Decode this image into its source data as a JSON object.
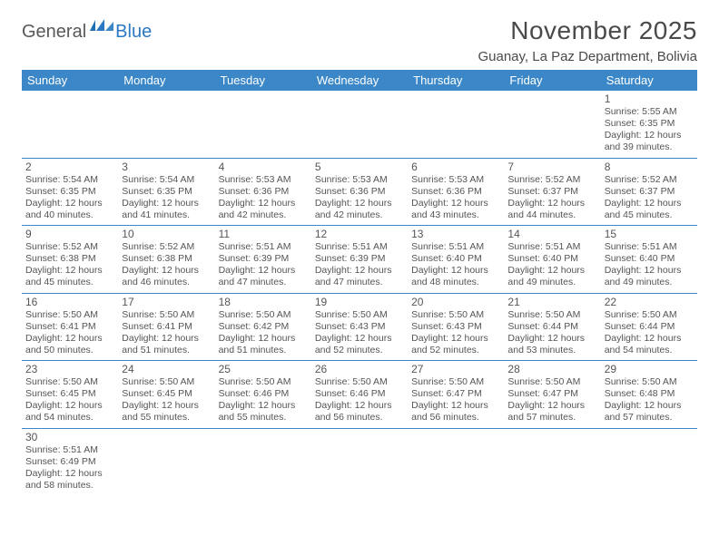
{
  "logo": {
    "text1": "General",
    "text2": "Blue"
  },
  "title": "November 2025",
  "location": "Guanay, La Paz Department, Bolivia",
  "colors": {
    "headerBg": "#3b87c8",
    "headerText": "#ffffff",
    "bodyText": "#555555",
    "titleText": "#4a4a4a",
    "logoGray": "#585858",
    "logoBlue": "#2b78c4",
    "rowBorder": "#3b87c8"
  },
  "weekdays": [
    "Sunday",
    "Monday",
    "Tuesday",
    "Wednesday",
    "Thursday",
    "Friday",
    "Saturday"
  ],
  "weeks": [
    [
      null,
      null,
      null,
      null,
      null,
      null,
      {
        "n": "1",
        "sr": "Sunrise: 5:55 AM",
        "ss": "Sunset: 6:35 PM",
        "d1": "Daylight: 12 hours",
        "d2": "and 39 minutes."
      }
    ],
    [
      {
        "n": "2",
        "sr": "Sunrise: 5:54 AM",
        "ss": "Sunset: 6:35 PM",
        "d1": "Daylight: 12 hours",
        "d2": "and 40 minutes."
      },
      {
        "n": "3",
        "sr": "Sunrise: 5:54 AM",
        "ss": "Sunset: 6:35 PM",
        "d1": "Daylight: 12 hours",
        "d2": "and 41 minutes."
      },
      {
        "n": "4",
        "sr": "Sunrise: 5:53 AM",
        "ss": "Sunset: 6:36 PM",
        "d1": "Daylight: 12 hours",
        "d2": "and 42 minutes."
      },
      {
        "n": "5",
        "sr": "Sunrise: 5:53 AM",
        "ss": "Sunset: 6:36 PM",
        "d1": "Daylight: 12 hours",
        "d2": "and 42 minutes."
      },
      {
        "n": "6",
        "sr": "Sunrise: 5:53 AM",
        "ss": "Sunset: 6:36 PM",
        "d1": "Daylight: 12 hours",
        "d2": "and 43 minutes."
      },
      {
        "n": "7",
        "sr": "Sunrise: 5:52 AM",
        "ss": "Sunset: 6:37 PM",
        "d1": "Daylight: 12 hours",
        "d2": "and 44 minutes."
      },
      {
        "n": "8",
        "sr": "Sunrise: 5:52 AM",
        "ss": "Sunset: 6:37 PM",
        "d1": "Daylight: 12 hours",
        "d2": "and 45 minutes."
      }
    ],
    [
      {
        "n": "9",
        "sr": "Sunrise: 5:52 AM",
        "ss": "Sunset: 6:38 PM",
        "d1": "Daylight: 12 hours",
        "d2": "and 45 minutes."
      },
      {
        "n": "10",
        "sr": "Sunrise: 5:52 AM",
        "ss": "Sunset: 6:38 PM",
        "d1": "Daylight: 12 hours",
        "d2": "and 46 minutes."
      },
      {
        "n": "11",
        "sr": "Sunrise: 5:51 AM",
        "ss": "Sunset: 6:39 PM",
        "d1": "Daylight: 12 hours",
        "d2": "and 47 minutes."
      },
      {
        "n": "12",
        "sr": "Sunrise: 5:51 AM",
        "ss": "Sunset: 6:39 PM",
        "d1": "Daylight: 12 hours",
        "d2": "and 47 minutes."
      },
      {
        "n": "13",
        "sr": "Sunrise: 5:51 AM",
        "ss": "Sunset: 6:40 PM",
        "d1": "Daylight: 12 hours",
        "d2": "and 48 minutes."
      },
      {
        "n": "14",
        "sr": "Sunrise: 5:51 AM",
        "ss": "Sunset: 6:40 PM",
        "d1": "Daylight: 12 hours",
        "d2": "and 49 minutes."
      },
      {
        "n": "15",
        "sr": "Sunrise: 5:51 AM",
        "ss": "Sunset: 6:40 PM",
        "d1": "Daylight: 12 hours",
        "d2": "and 49 minutes."
      }
    ],
    [
      {
        "n": "16",
        "sr": "Sunrise: 5:50 AM",
        "ss": "Sunset: 6:41 PM",
        "d1": "Daylight: 12 hours",
        "d2": "and 50 minutes."
      },
      {
        "n": "17",
        "sr": "Sunrise: 5:50 AM",
        "ss": "Sunset: 6:41 PM",
        "d1": "Daylight: 12 hours",
        "d2": "and 51 minutes."
      },
      {
        "n": "18",
        "sr": "Sunrise: 5:50 AM",
        "ss": "Sunset: 6:42 PM",
        "d1": "Daylight: 12 hours",
        "d2": "and 51 minutes."
      },
      {
        "n": "19",
        "sr": "Sunrise: 5:50 AM",
        "ss": "Sunset: 6:43 PM",
        "d1": "Daylight: 12 hours",
        "d2": "and 52 minutes."
      },
      {
        "n": "20",
        "sr": "Sunrise: 5:50 AM",
        "ss": "Sunset: 6:43 PM",
        "d1": "Daylight: 12 hours",
        "d2": "and 52 minutes."
      },
      {
        "n": "21",
        "sr": "Sunrise: 5:50 AM",
        "ss": "Sunset: 6:44 PM",
        "d1": "Daylight: 12 hours",
        "d2": "and 53 minutes."
      },
      {
        "n": "22",
        "sr": "Sunrise: 5:50 AM",
        "ss": "Sunset: 6:44 PM",
        "d1": "Daylight: 12 hours",
        "d2": "and 54 minutes."
      }
    ],
    [
      {
        "n": "23",
        "sr": "Sunrise: 5:50 AM",
        "ss": "Sunset: 6:45 PM",
        "d1": "Daylight: 12 hours",
        "d2": "and 54 minutes."
      },
      {
        "n": "24",
        "sr": "Sunrise: 5:50 AM",
        "ss": "Sunset: 6:45 PM",
        "d1": "Daylight: 12 hours",
        "d2": "and 55 minutes."
      },
      {
        "n": "25",
        "sr": "Sunrise: 5:50 AM",
        "ss": "Sunset: 6:46 PM",
        "d1": "Daylight: 12 hours",
        "d2": "and 55 minutes."
      },
      {
        "n": "26",
        "sr": "Sunrise: 5:50 AM",
        "ss": "Sunset: 6:46 PM",
        "d1": "Daylight: 12 hours",
        "d2": "and 56 minutes."
      },
      {
        "n": "27",
        "sr": "Sunrise: 5:50 AM",
        "ss": "Sunset: 6:47 PM",
        "d1": "Daylight: 12 hours",
        "d2": "and 56 minutes."
      },
      {
        "n": "28",
        "sr": "Sunrise: 5:50 AM",
        "ss": "Sunset: 6:47 PM",
        "d1": "Daylight: 12 hours",
        "d2": "and 57 minutes."
      },
      {
        "n": "29",
        "sr": "Sunrise: 5:50 AM",
        "ss": "Sunset: 6:48 PM",
        "d1": "Daylight: 12 hours",
        "d2": "and 57 minutes."
      }
    ],
    [
      {
        "n": "30",
        "sr": "Sunrise: 5:51 AM",
        "ss": "Sunset: 6:49 PM",
        "d1": "Daylight: 12 hours",
        "d2": "and 58 minutes."
      },
      null,
      null,
      null,
      null,
      null,
      null
    ]
  ]
}
